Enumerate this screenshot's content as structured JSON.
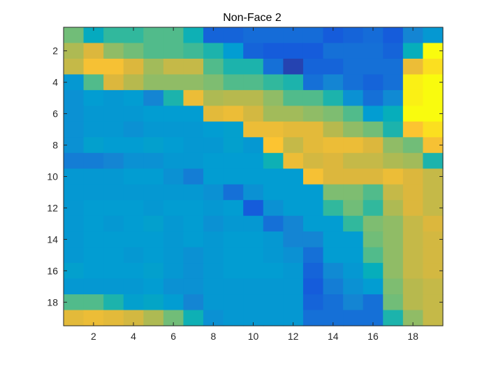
{
  "chart_data": {
    "type": "heatmap",
    "title": "Non-Face 2",
    "xlabel": "",
    "ylabel": "",
    "colormap": "parula",
    "rows": 19,
    "cols": 19,
    "xlim": [
      0.5,
      19.5
    ],
    "ylim": [
      0.5,
      19.5
    ],
    "y_direction": "reverse",
    "x_ticks": [
      2,
      4,
      6,
      8,
      10,
      12,
      14,
      16,
      18
    ],
    "y_ticks": [
      2,
      4,
      6,
      8,
      10,
      12,
      14,
      16,
      18
    ],
    "x_tick_labels": [
      "2",
      "4",
      "6",
      "8",
      "10",
      "12",
      "14",
      "16",
      "18"
    ],
    "y_tick_labels": [
      "2",
      "4",
      "6",
      "8",
      "10",
      "12",
      "14",
      "16",
      "18"
    ],
    "grid": false,
    "values": [
      [
        0.6,
        0.38,
        0.5,
        0.5,
        0.55,
        0.55,
        0.42,
        0.12,
        0.12,
        0.14,
        0.14,
        0.14,
        0.14,
        0.1,
        0.12,
        0.14,
        0.1,
        0.2,
        0.28
      ],
      [
        0.7,
        0.8,
        0.65,
        0.6,
        0.55,
        0.55,
        0.52,
        0.45,
        0.3,
        0.12,
        0.1,
        0.1,
        0.1,
        0.15,
        0.15,
        0.15,
        0.12,
        0.4,
        1.0
      ],
      [
        0.75,
        0.88,
        0.88,
        0.8,
        0.68,
        0.75,
        0.75,
        0.55,
        0.45,
        0.45,
        0.15,
        0.05,
        0.12,
        0.12,
        0.15,
        0.15,
        0.15,
        0.85,
        0.95
      ],
      [
        0.28,
        0.55,
        0.8,
        0.72,
        0.65,
        0.65,
        0.65,
        0.62,
        0.55,
        0.55,
        0.5,
        0.45,
        0.15,
        0.2,
        0.15,
        0.12,
        0.15,
        0.98,
        1.0
      ],
      [
        0.25,
        0.3,
        0.28,
        0.3,
        0.2,
        0.45,
        0.85,
        0.7,
        0.72,
        0.72,
        0.65,
        0.55,
        0.55,
        0.45,
        0.25,
        0.15,
        0.22,
        0.98,
        1.0
      ],
      [
        0.25,
        0.28,
        0.28,
        0.28,
        0.3,
        0.3,
        0.3,
        0.82,
        0.85,
        0.78,
        0.68,
        0.68,
        0.65,
        0.62,
        0.55,
        0.3,
        0.4,
        1.0,
        1.0
      ],
      [
        0.25,
        0.28,
        0.28,
        0.25,
        0.28,
        0.28,
        0.28,
        0.3,
        0.32,
        0.85,
        0.85,
        0.82,
        0.82,
        0.72,
        0.65,
        0.6,
        0.45,
        0.9,
        0.95
      ],
      [
        0.25,
        0.32,
        0.3,
        0.3,
        0.32,
        0.3,
        0.28,
        0.28,
        0.32,
        0.28,
        0.9,
        0.75,
        0.82,
        0.85,
        0.85,
        0.8,
        0.65,
        0.6,
        0.88
      ],
      [
        0.18,
        0.18,
        0.2,
        0.25,
        0.25,
        0.28,
        0.28,
        0.3,
        0.3,
        0.3,
        0.42,
        0.85,
        0.78,
        0.8,
        0.75,
        0.75,
        0.7,
        0.68,
        0.45
      ],
      [
        0.28,
        0.28,
        0.28,
        0.3,
        0.3,
        0.25,
        0.18,
        0.3,
        0.3,
        0.3,
        0.3,
        0.3,
        0.88,
        0.8,
        0.8,
        0.8,
        0.85,
        0.8,
        0.75
      ],
      [
        0.28,
        0.28,
        0.28,
        0.28,
        0.28,
        0.28,
        0.28,
        0.25,
        0.15,
        0.25,
        0.3,
        0.3,
        0.3,
        0.62,
        0.62,
        0.55,
        0.75,
        0.8,
        0.75
      ],
      [
        0.28,
        0.3,
        0.3,
        0.3,
        0.28,
        0.3,
        0.3,
        0.28,
        0.3,
        0.1,
        0.25,
        0.3,
        0.3,
        0.5,
        0.6,
        0.5,
        0.7,
        0.8,
        0.75
      ],
      [
        0.28,
        0.3,
        0.28,
        0.3,
        0.32,
        0.28,
        0.3,
        0.25,
        0.28,
        0.28,
        0.15,
        0.2,
        0.3,
        0.3,
        0.5,
        0.62,
        0.65,
        0.75,
        0.8
      ],
      [
        0.28,
        0.3,
        0.3,
        0.3,
        0.3,
        0.28,
        0.3,
        0.28,
        0.3,
        0.3,
        0.28,
        0.2,
        0.2,
        0.3,
        0.3,
        0.6,
        0.65,
        0.75,
        0.78
      ],
      [
        0.28,
        0.3,
        0.3,
        0.28,
        0.3,
        0.28,
        0.25,
        0.28,
        0.3,
        0.3,
        0.28,
        0.25,
        0.15,
        0.3,
        0.3,
        0.55,
        0.65,
        0.75,
        0.78
      ],
      [
        0.32,
        0.3,
        0.3,
        0.3,
        0.32,
        0.28,
        0.25,
        0.28,
        0.3,
        0.3,
        0.3,
        0.28,
        0.12,
        0.22,
        0.28,
        0.4,
        0.65,
        0.75,
        0.78
      ],
      [
        0.28,
        0.28,
        0.28,
        0.28,
        0.3,
        0.25,
        0.25,
        0.28,
        0.28,
        0.28,
        0.28,
        0.28,
        0.1,
        0.18,
        0.25,
        0.3,
        0.62,
        0.72,
        0.75
      ],
      [
        0.55,
        0.55,
        0.45,
        0.32,
        0.35,
        0.3,
        0.2,
        0.28,
        0.28,
        0.28,
        0.28,
        0.28,
        0.12,
        0.15,
        0.2,
        0.15,
        0.6,
        0.72,
        0.75
      ],
      [
        0.82,
        0.85,
        0.82,
        0.78,
        0.7,
        0.6,
        0.42,
        0.25,
        0.28,
        0.28,
        0.28,
        0.28,
        0.15,
        0.15,
        0.15,
        0.15,
        0.45,
        0.65,
        0.75
      ]
    ]
  }
}
